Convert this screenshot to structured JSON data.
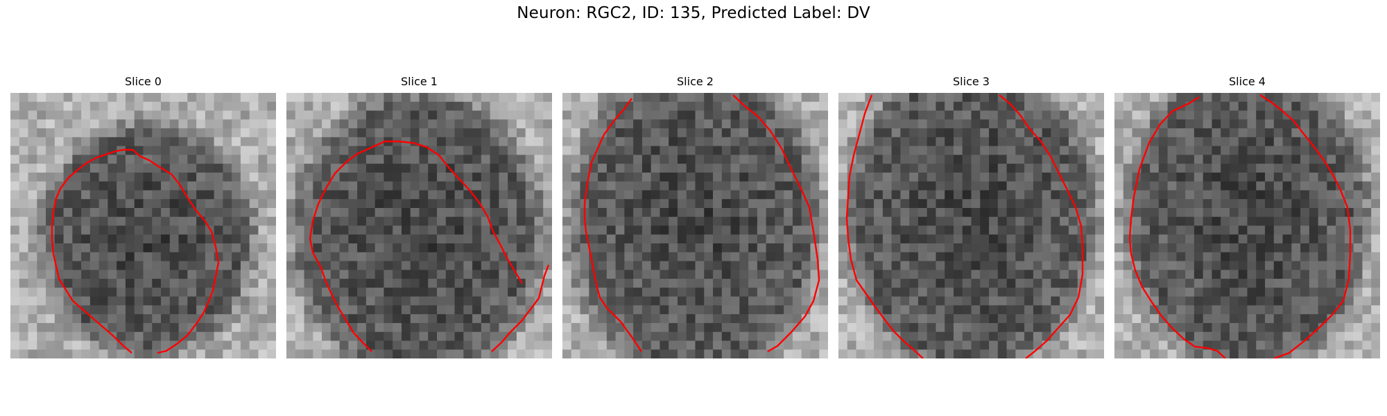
{
  "figure": {
    "title": "Neuron: RGC2, ID: 135, Predicted Label: DV"
  },
  "contour_color": "#ff0000",
  "slices": [
    {
      "title": "Slice 0"
    },
    {
      "title": "Slice 1"
    },
    {
      "title": "Slice 2"
    },
    {
      "title": "Slice 3"
    },
    {
      "title": "Slice 4"
    }
  ]
}
